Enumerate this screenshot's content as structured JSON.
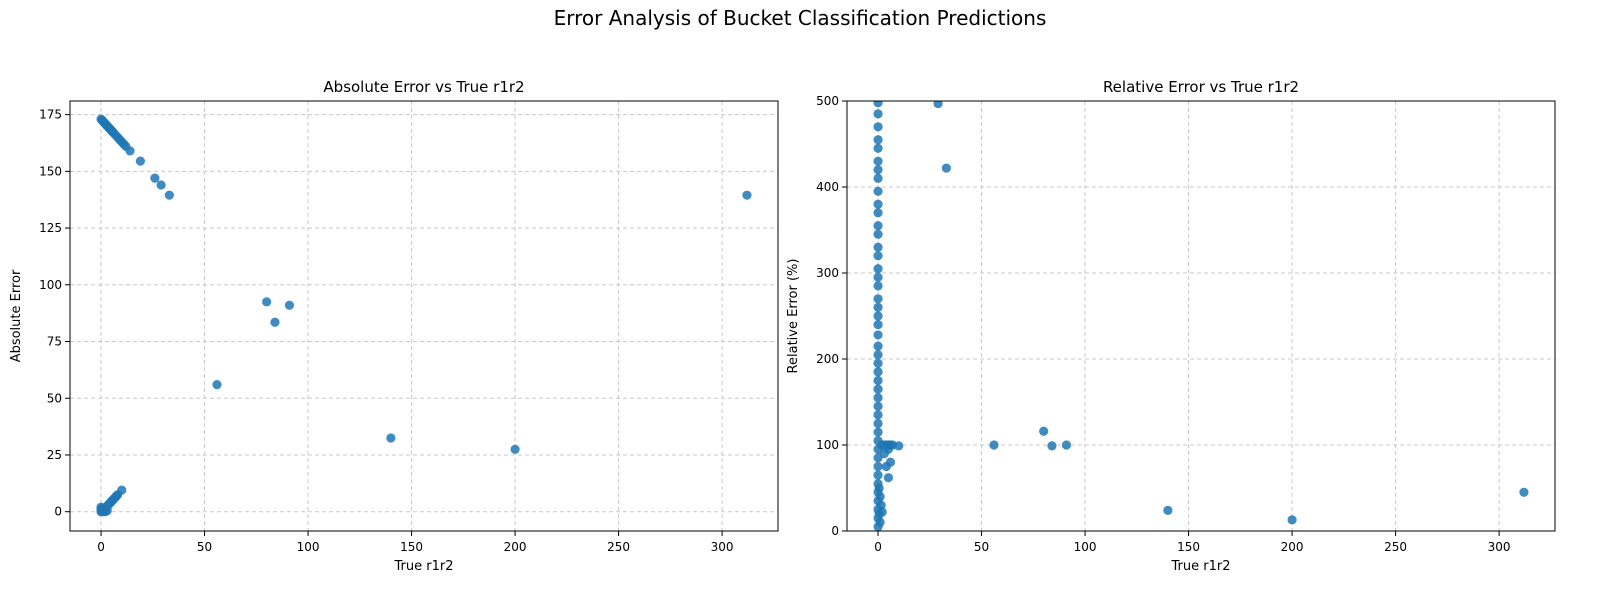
{
  "figure": {
    "title": "Error Analysis of Bucket Classification Predictions"
  },
  "colors": {
    "point": "#1f77b4",
    "grid": "#c8c8c8",
    "axis": "#000000"
  },
  "chart_data": [
    {
      "type": "scatter",
      "title": "Absolute Error vs True r1r2",
      "xlabel": "True r1r2",
      "ylabel": "Absolute Error",
      "xlim": [
        -15,
        327
      ],
      "ylim": [
        -8.5,
        181
      ],
      "xticks": [
        0,
        50,
        100,
        150,
        200,
        250,
        300
      ],
      "yticks": [
        0,
        25,
        50,
        75,
        100,
        125,
        150,
        175
      ],
      "grid": true,
      "points": [
        [
          0,
          173
        ],
        [
          0.5,
          172.5
        ],
        [
          1,
          172
        ],
        [
          1.5,
          171.5
        ],
        [
          2,
          171
        ],
        [
          2.5,
          170.5
        ],
        [
          3,
          170
        ],
        [
          3.5,
          169.5
        ],
        [
          4,
          169
        ],
        [
          4.5,
          168.5
        ],
        [
          5,
          168
        ],
        [
          5.5,
          167.5
        ],
        [
          6,
          167
        ],
        [
          7,
          166
        ],
        [
          8,
          165
        ],
        [
          9,
          164
        ],
        [
          10,
          163
        ],
        [
          11,
          162
        ],
        [
          12,
          161
        ],
        [
          14,
          159
        ],
        [
          19,
          154.5
        ],
        [
          26,
          147
        ],
        [
          29,
          144
        ],
        [
          33,
          139.5
        ],
        [
          56,
          56
        ],
        [
          80,
          92.5
        ],
        [
          84,
          83.5
        ],
        [
          91,
          91
        ],
        [
          140,
          32.5
        ],
        [
          200,
          27.5
        ],
        [
          312,
          139.5
        ],
        [
          0,
          0
        ],
        [
          0,
          1
        ],
        [
          0,
          2
        ],
        [
          0.3,
          0.3
        ],
        [
          0.5,
          1.5
        ],
        [
          1,
          0
        ],
        [
          1,
          1
        ],
        [
          1.5,
          0.5
        ],
        [
          2,
          0
        ],
        [
          2,
          1
        ],
        [
          2.5,
          2
        ],
        [
          3,
          0.5
        ],
        [
          3,
          2.5
        ],
        [
          3.5,
          3
        ],
        [
          4,
          3.5
        ],
        [
          4.5,
          4
        ],
        [
          5,
          4.5
        ],
        [
          5.5,
          5
        ],
        [
          6,
          5.5
        ],
        [
          6.5,
          6
        ],
        [
          7,
          6.5
        ],
        [
          7.5,
          7
        ],
        [
          8,
          7.5
        ],
        [
          10,
          9.5
        ]
      ]
    },
    {
      "type": "scatter",
      "title": "Relative Error vs True r1r2",
      "xlabel": "True r1r2",
      "ylabel": "Relative Error (%)",
      "xlim": [
        -15,
        327
      ],
      "ylim": [
        0,
        500
      ],
      "xticks": [
        0,
        50,
        100,
        150,
        200,
        250,
        300
      ],
      "yticks": [
        0,
        100,
        200,
        300,
        400,
        500
      ],
      "grid": true,
      "points": [
        [
          0,
          498
        ],
        [
          0,
          485
        ],
        [
          0,
          470
        ],
        [
          0,
          455
        ],
        [
          0,
          445
        ],
        [
          0,
          430
        ],
        [
          0,
          420
        ],
        [
          0,
          410
        ],
        [
          0,
          395
        ],
        [
          0,
          380
        ],
        [
          0,
          370
        ],
        [
          0,
          355
        ],
        [
          0,
          345
        ],
        [
          0,
          330
        ],
        [
          0,
          320
        ],
        [
          0,
          305
        ],
        [
          0,
          295
        ],
        [
          0,
          285
        ],
        [
          0,
          270
        ],
        [
          0,
          260
        ],
        [
          0,
          250
        ],
        [
          0,
          240
        ],
        [
          0,
          228
        ],
        [
          0,
          215
        ],
        [
          0,
          205
        ],
        [
          0,
          195
        ],
        [
          0,
          185
        ],
        [
          0,
          175
        ],
        [
          0,
          165
        ],
        [
          0,
          155
        ],
        [
          0,
          145
        ],
        [
          0,
          135
        ],
        [
          0,
          125
        ],
        [
          0,
          115
        ],
        [
          0,
          105
        ],
        [
          0,
          95
        ],
        [
          0,
          85
        ],
        [
          0,
          75
        ],
        [
          0,
          65
        ],
        [
          0,
          55
        ],
        [
          0,
          45
        ],
        [
          0,
          35
        ],
        [
          0,
          25
        ],
        [
          0,
          15
        ],
        [
          0,
          5
        ],
        [
          0.5,
          50
        ],
        [
          0.5,
          20
        ],
        [
          1,
          40
        ],
        [
          1,
          10
        ],
        [
          1.5,
          30
        ],
        [
          2,
          22
        ],
        [
          2,
          100
        ],
        [
          3,
          100
        ],
        [
          4,
          100
        ],
        [
          5,
          100
        ],
        [
          6,
          100
        ],
        [
          7,
          100
        ],
        [
          10,
          99
        ],
        [
          3,
          90
        ],
        [
          4,
          75
        ],
        [
          5,
          62
        ],
        [
          6,
          80
        ],
        [
          5,
          95
        ],
        [
          29,
          497
        ],
        [
          33,
          422
        ],
        [
          56,
          100
        ],
        [
          80,
          116
        ],
        [
          84,
          99
        ],
        [
          91,
          100
        ],
        [
          140,
          24
        ],
        [
          200,
          13
        ],
        [
          312,
          45
        ]
      ]
    }
  ]
}
